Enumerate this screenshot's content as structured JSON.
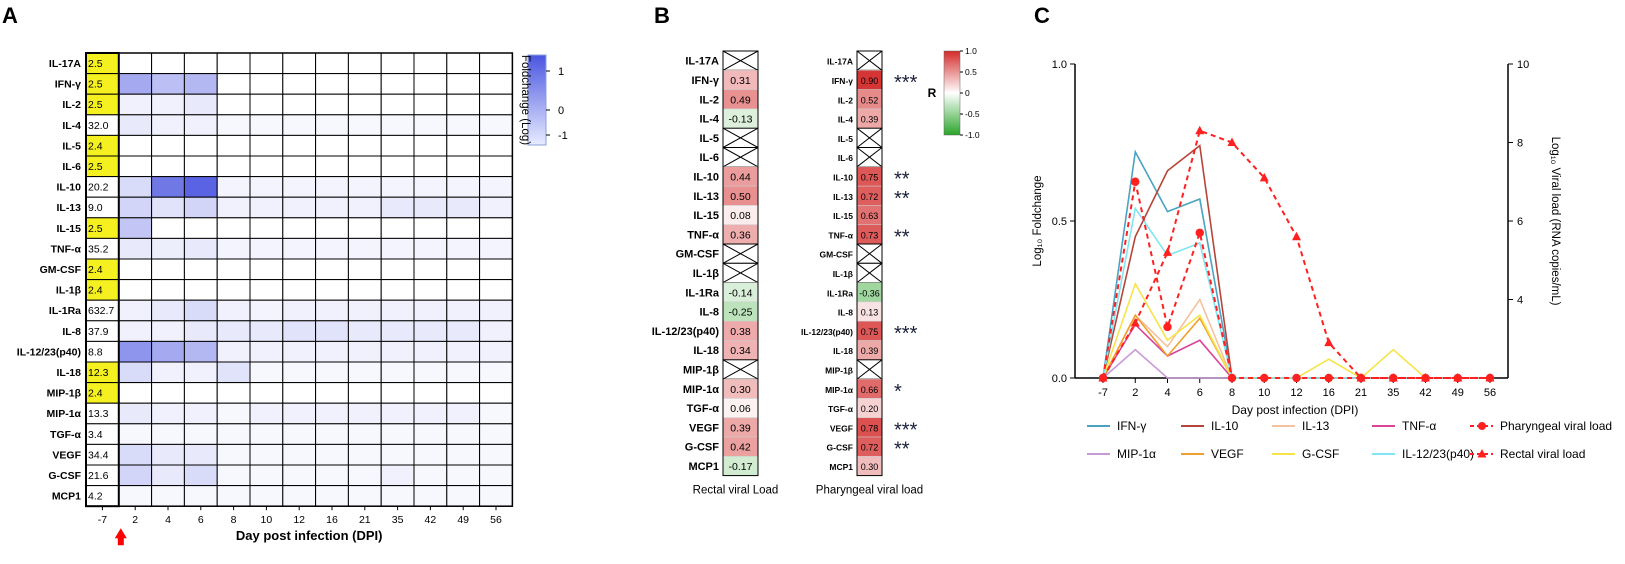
{
  "panel_labels": {
    "a": "A",
    "b": "B",
    "c": "C"
  },
  "chart_data": [
    {
      "type": "heatmap",
      "panel": "A",
      "xlabel": "Day post infection (DPI)",
      "x": [
        "-7",
        "2",
        "4",
        "6",
        "8",
        "10",
        "12",
        "16",
        "21",
        "35",
        "42",
        "49",
        "56"
      ],
      "y": [
        "IL-17A",
        "IFN-γ",
        "IL-2",
        "IL-4",
        "IL-5",
        "IL-6",
        "IL-10",
        "IL-13",
        "IL-15",
        "TNF-α",
        "GM-CSF",
        "IL-1β",
        "IL-1Ra",
        "IL-8",
        "IL-12/23(p40)",
        "IL-18",
        "MIP-1β",
        "MIP-1α",
        "TGF-α",
        "VEGF",
        "G-CSF",
        "MCP1"
      ],
      "baseline_labels": [
        "2.5",
        "2.5",
        "2.5",
        "32.0",
        "2.4",
        "2.5",
        "20.2",
        "9.0",
        "2.5",
        "35.2",
        "2.4",
        "2.4",
        "632.7",
        "37.9",
        "8.8",
        "12.3",
        "2.4",
        "13.3",
        "3.4",
        "34.4",
        "21.6",
        "4.2"
      ],
      "baseline_highlight": [
        true,
        true,
        true,
        false,
        true,
        true,
        false,
        false,
        true,
        false,
        true,
        true,
        false,
        false,
        false,
        true,
        true,
        false,
        false,
        false,
        false,
        false
      ],
      "values": [
        [
          0,
          0,
          0,
          0,
          0,
          0,
          0,
          0,
          0,
          0,
          0,
          0
        ],
        [
          0.6,
          0.45,
          0.5,
          0,
          0,
          0,
          0,
          0,
          0,
          0,
          0,
          0
        ],
        [
          0.1,
          0.1,
          0.15,
          0,
          0,
          0,
          0,
          0,
          0,
          0,
          0,
          0
        ],
        [
          0.15,
          0.1,
          0.1,
          0.05,
          0.05,
          0.05,
          0.05,
          0.05,
          0.05,
          0.05,
          0.05,
          0.05
        ],
        [
          0,
          0,
          0,
          0,
          0,
          0,
          0,
          0,
          0,
          0,
          0,
          0
        ],
        [
          0,
          0,
          0,
          0,
          0,
          0,
          0,
          0,
          0,
          0,
          0,
          0
        ],
        [
          0.25,
          0.95,
          1.1,
          0.08,
          0.08,
          0.08,
          0.08,
          0.08,
          0.08,
          0.08,
          0.08,
          0.08
        ],
        [
          0.3,
          0.2,
          0.3,
          0.1,
          0.1,
          0.1,
          0.1,
          0.1,
          0.15,
          0.15,
          0.15,
          0.1
        ],
        [
          0.4,
          0,
          0,
          0,
          0,
          0,
          0,
          0,
          0,
          0,
          0,
          0
        ],
        [
          0.15,
          0.12,
          0.15,
          0.08,
          0.08,
          0.08,
          0.08,
          0.08,
          0.08,
          0.08,
          0.08,
          0.08
        ],
        [
          0,
          0,
          0,
          0,
          0,
          0,
          0,
          0,
          0,
          0,
          0,
          0
        ],
        [
          0,
          0,
          0,
          0,
          0,
          0,
          0,
          0,
          0,
          0,
          0,
          0
        ],
        [
          0.1,
          0.15,
          0.25,
          0.1,
          0.08,
          0.1,
          0.1,
          0.1,
          0.1,
          0.1,
          0.1,
          0.1
        ],
        [
          0.1,
          0.1,
          0.15,
          0.15,
          0.15,
          0.2,
          0.2,
          0.15,
          0.15,
          0.15,
          0.15,
          0.1
        ],
        [
          0.75,
          0.6,
          0.5,
          0.1,
          0.1,
          0.1,
          0.1,
          0.1,
          0.1,
          0.1,
          0.1,
          0.1
        ],
        [
          0.25,
          0.1,
          0.1,
          0.2,
          0.05,
          0.05,
          0.05,
          0.05,
          0.05,
          0.05,
          0.05,
          0.05
        ],
        [
          0,
          0,
          0,
          0,
          0,
          0,
          0,
          0,
          0,
          0,
          0,
          0
        ],
        [
          0.15,
          0.1,
          0.1,
          0.05,
          0.1,
          0.1,
          0.1,
          0.1,
          0.1,
          0.1,
          0.1,
          0.05
        ],
        [
          0.05,
          0.05,
          0.05,
          0.05,
          0.05,
          0.05,
          0.05,
          0.05,
          0.05,
          0.05,
          0.05,
          0.05
        ],
        [
          0.25,
          0.15,
          0.15,
          0.05,
          0.05,
          0.05,
          0.05,
          0.05,
          0.05,
          0.05,
          0.05,
          0.05
        ],
        [
          0.3,
          0.15,
          0.25,
          0.05,
          0.05,
          0.05,
          0.05,
          0.05,
          0.1,
          0.05,
          0.05,
          0.05
        ],
        [
          0.05,
          0.05,
          0.05,
          0.05,
          0.05,
          0.05,
          0.05,
          0.05,
          0.05,
          0.05,
          0.05,
          0.05
        ]
      ],
      "colorbar": {
        "label": "Foldchange (Log)",
        "ticks": [
          "1",
          "0",
          "-1"
        ],
        "range": [
          -1.5,
          1.5
        ]
      },
      "colors": {
        "high": "#4a55e0",
        "low": "#ffffff",
        "baseline_highlight": "#f5f020",
        "arrow": "#ff0000"
      }
    },
    {
      "type": "heatmap",
      "panel": "B",
      "subtype": "correlation",
      "columns": [
        {
          "xlabel": "Rectal viral Load",
          "y": [
            "IL-17A",
            "IFN-γ",
            "IL-2",
            "IL-4",
            "IL-5",
            "IL-6",
            "IL-10",
            "IL-13",
            "IL-15",
            "TNF-α",
            "GM-CSF",
            "IL-1β",
            "IL-1Ra",
            "IL-8",
            "IL-12/23(p40)",
            "IL-18",
            "MIP-1β",
            "MIP-1α",
            "TGF-α",
            "VEGF",
            "G-CSF",
            "MCP1"
          ],
          "values": [
            null,
            0.31,
            0.49,
            -0.13,
            null,
            null,
            0.44,
            0.5,
            0.08,
            0.36,
            null,
            null,
            -0.14,
            -0.25,
            0.38,
            0.34,
            null,
            0.3,
            0.06,
            0.39,
            0.42,
            -0.17
          ],
          "labels": [
            "",
            "0.31",
            "0.49",
            "-0.13",
            "",
            "",
            "0.44",
            "0.50",
            "0.08",
            "0.36",
            "",
            "",
            "-0.14",
            "-0.25",
            "0.38",
            "0.34",
            "",
            "0.30",
            "0.06",
            "0.39",
            "0.42",
            "-0.17"
          ],
          "significance": [
            "",
            "",
            "",
            "",
            "",
            "",
            "",
            "",
            "",
            "",
            "",
            "",
            "",
            "",
            "",
            "",
            "",
            "",
            "",
            "",
            "",
            ""
          ]
        },
        {
          "xlabel": "Pharyngeal viral load",
          "y": [
            "IL-17A",
            "IFN-γ",
            "IL-2",
            "IL-4",
            "IL-5",
            "IL-6",
            "IL-10",
            "IL-13",
            "IL-15",
            "TNF-α",
            "GM-CSF",
            "IL-1β",
            "IL-1Ra",
            "IL-8",
            "IL-12/23(p40)",
            "IL-18",
            "MIP-1β",
            "MIP-1α",
            "TGF-α",
            "VEGF",
            "G-CSF",
            "MCP1"
          ],
          "values": [
            null,
            0.9,
            0.52,
            0.39,
            null,
            null,
            0.75,
            0.72,
            0.63,
            0.73,
            null,
            null,
            -0.36,
            0.13,
            0.75,
            0.39,
            null,
            0.66,
            0.2,
            0.78,
            0.72,
            0.3
          ],
          "labels": [
            "",
            "0.90",
            "0.52",
            "0.39",
            "",
            "",
            "0.75",
            "0.72",
            "0.63",
            "0.73",
            "",
            "",
            "-0.36",
            "0.13",
            "0.75",
            "0.39",
            "",
            "0.66",
            "0.20",
            "0.78",
            "0.72",
            "0.30"
          ],
          "significance": [
            "",
            "***",
            "",
            "",
            "",
            "",
            "**",
            "**",
            "",
            "**",
            "",
            "",
            "",
            "",
            "***",
            "",
            "",
            "*",
            "",
            "***",
            "**",
            ""
          ]
        }
      ],
      "colorbar": {
        "label": "R",
        "ticks": [
          "1.0",
          "0.5",
          "0",
          "-0.5",
          "-1.0"
        ],
        "range": [
          -1,
          1
        ]
      },
      "colors": {
        "positive": "#d42a2a",
        "negative": "#2aa52a",
        "zero": "#ffffff"
      }
    },
    {
      "type": "line",
      "panel": "C",
      "xlabel": "Day post infection (DPI)",
      "ylabel": "Log₁₀ Foldchange",
      "y2label": "Log₁₀ Viral load (RNA copies/mL)",
      "x": [
        "-7",
        "2",
        "4",
        "6",
        "8",
        "10",
        "12",
        "16",
        "21",
        "35",
        "42",
        "49",
        "56"
      ],
      "ylim": [
        0,
        1.0
      ],
      "yticks": [
        "0.0",
        "0.5",
        "1.0"
      ],
      "y2lim": [
        2,
        10
      ],
      "y2ticks": [
        "4",
        "6",
        "8",
        "10"
      ],
      "series": [
        {
          "name": "IFN-γ",
          "axis": "left",
          "color": "#4aa3c0",
          "dashed": false,
          "marker": "none",
          "values": [
            0,
            0.72,
            0.53,
            0.57,
            0,
            0,
            0,
            0,
            0,
            0,
            0,
            0,
            0
          ]
        },
        {
          "name": "IL-10",
          "axis": "left",
          "color": "#b5453a",
          "dashed": false,
          "marker": "none",
          "values": [
            0,
            0.45,
            0.66,
            0.74,
            0,
            0,
            0,
            0,
            0,
            0,
            0,
            0,
            0
          ]
        },
        {
          "name": "IL-13",
          "axis": "left",
          "color": "#f3c2a0",
          "dashed": false,
          "marker": "none",
          "values": [
            0,
            0.2,
            0.1,
            0.25,
            0,
            0,
            0,
            0,
            0,
            0,
            0,
            0,
            0
          ]
        },
        {
          "name": "TNF-α",
          "axis": "left",
          "color": "#d9449a",
          "dashed": false,
          "marker": "none",
          "values": [
            0,
            0.17,
            0.07,
            0.12,
            0,
            0,
            0,
            0,
            0,
            0,
            0,
            0,
            0
          ]
        },
        {
          "name": "MIP-1α",
          "axis": "left",
          "color": "#c79ad6",
          "dashed": false,
          "marker": "none",
          "values": [
            0,
            0.09,
            0,
            0,
            0,
            0,
            0,
            0,
            0,
            0,
            0,
            0,
            0
          ]
        },
        {
          "name": "VEGF",
          "axis": "left",
          "color": "#f0a030",
          "dashed": false,
          "marker": "none",
          "values": [
            0,
            0.2,
            0.07,
            0.19,
            0,
            0,
            0,
            0,
            0,
            0,
            0,
            0,
            0
          ]
        },
        {
          "name": "G-CSF",
          "axis": "left",
          "color": "#f5e44a",
          "dashed": false,
          "marker": "none",
          "values": [
            0,
            0.3,
            0.12,
            0.2,
            0,
            0,
            0,
            0.06,
            0,
            0.09,
            0,
            0,
            0
          ]
        },
        {
          "name": "IL-12/23(p40)",
          "axis": "left",
          "color": "#7fe6f2",
          "dashed": false,
          "marker": "none",
          "values": [
            0,
            0.54,
            0.39,
            0.43,
            0,
            0,
            0,
            0,
            0,
            0,
            0,
            0,
            0
          ]
        },
        {
          "name": "Pharyngeal viral load",
          "axis": "right",
          "color": "#ff2020",
          "dashed": true,
          "marker": "circle",
          "values": [
            2,
            7,
            3.3,
            5.7,
            2,
            2,
            2,
            2,
            2,
            2,
            2,
            2,
            2
          ]
        },
        {
          "name": "Rectal viral load",
          "axis": "right",
          "color": "#ff2020",
          "dashed": true,
          "marker": "triangle",
          "values": [
            2,
            3.4,
            5.2,
            8.3,
            8,
            7.1,
            5.6,
            2.9,
            2,
            2,
            2,
            2,
            2
          ]
        }
      ],
      "legend_placement": "bottom"
    }
  ]
}
